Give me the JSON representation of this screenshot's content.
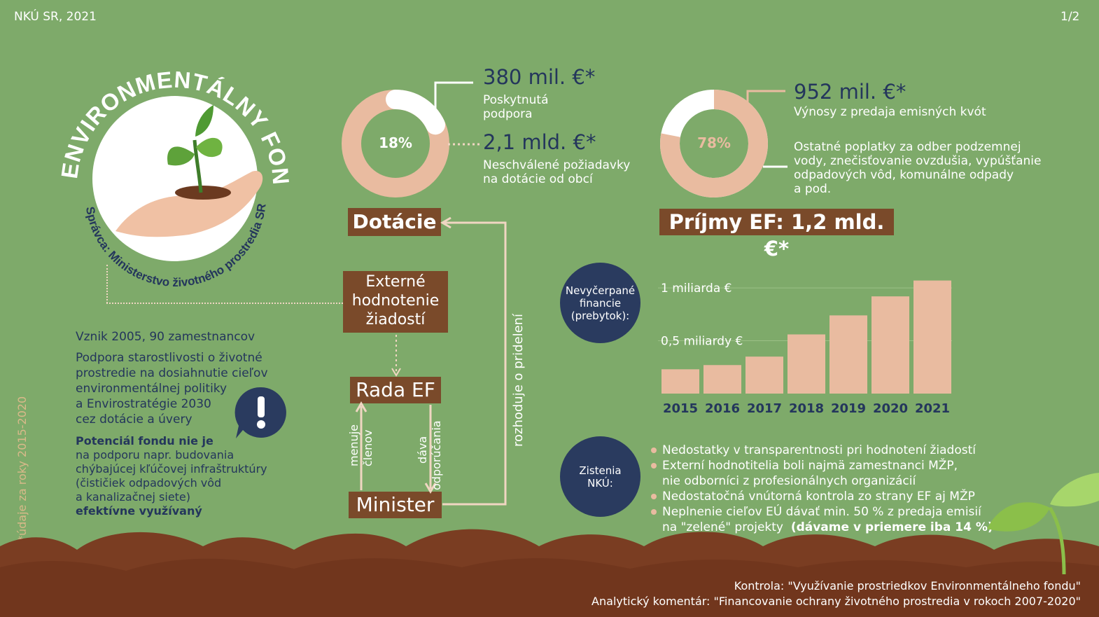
{
  "header": {
    "source": "NKÚ SR, 2021",
    "page": "1/2"
  },
  "logo": {
    "title": "ENVIRONMENTÁLNY FOND",
    "subtitle": "Správca: Ministerstvo životného prostredia SR"
  },
  "left": {
    "founded": "Vznik 2005, 90 zamestnancov",
    "desc1": "Podpora starostlivosti o životné",
    "desc2": "prostredie na dosiahnutie cieľov",
    "desc3": "environmentálnej politiky",
    "desc4": "a Envirostratégie 2030",
    "desc5": "cez dotácie a úvery",
    "pot1": "Potenciál fondu nie je",
    "pot2": "na podporu napr. budovania",
    "pot3": "chýbajúcej kľúčovej infraštruktúry",
    "pot4": "(čističiek odpadových vôd",
    "pot5": "a kanalizačnej siete)",
    "pot6": "efektívne využívaný",
    "footnote": "*údaje za roky 2015-2020"
  },
  "donut_left": {
    "percent": "18%",
    "value_fraction": 0.18,
    "val1": "380 mil. €*",
    "lbl1a": "Poskytnutá",
    "lbl1b": "podpora",
    "val2": "2,1 mld. €*",
    "lbl2a": "Neschválené požiadavky",
    "lbl2b": "na dotácie od obcí"
  },
  "donut_right": {
    "percent": "78%",
    "value_fraction": 0.78,
    "val1": "952 mil. €*",
    "lbl1": "Výnosy z predaja emisných kvót",
    "lbl2a": "Ostatné poplatky za odber podzemnej",
    "lbl2b": "vody, znečisťovanie ovzdušia, vypúšťanie",
    "lbl2c": "odpadových vôd, komunálne odpady",
    "lbl2d": "a pod."
  },
  "flow": {
    "dotacie": "Dotácie",
    "ext1": "Externé",
    "ext2": "hodnotenie",
    "ext3": "žiadostí",
    "rada": "Rada EF",
    "minister": "Minister",
    "menuje1": "menuje",
    "menuje2": "členov",
    "dava1": "dáva",
    "dava2": "odporúčania",
    "rozhoduje": "rozhoduje o pridelení"
  },
  "income": {
    "title": "Príjmy EF: 1,2 mld. €*"
  },
  "surplus": {
    "circle1": "Nevyčerpané",
    "circle2": "financie",
    "circle3": "(prebytok):"
  },
  "chart_data": {
    "type": "bar",
    "categories": [
      "2015",
      "2016",
      "2017",
      "2018",
      "2019",
      "2020",
      "2021"
    ],
    "values": [
      0.23,
      0.27,
      0.35,
      0.56,
      0.74,
      0.92,
      1.07
    ],
    "ylim": [
      0,
      1.12
    ],
    "gridlines": [
      {
        "value": 1.0,
        "label": "1 miliarda €"
      },
      {
        "value": 0.5,
        "label": "0,5 miliardy €"
      }
    ],
    "bar_color": "#e9bba0"
  },
  "findings": {
    "circle1": "Zistenia",
    "circle2": "NKÚ:",
    "f1": "Nedostatky v transparentnosti pri hodnotení žiadostí",
    "f2a": "Externí hodnotitelia boli najmä zamestnanci MŽP,",
    "f2b": "nie odborníci z profesionálnych organizácií",
    "f3": "Nedostatočná vnútorná kontrola zo strany EF aj MŽP",
    "f4a": "Neplnenie cieľov EÚ dávať min. 50 % z predaja emisií",
    "f4b": "na \"zelené\" projekty",
    "f4c": "(dávame v priemere iba 14 %)"
  },
  "footer": {
    "line1": "Kontrola: \"Využívanie prostriedkov Environmentálneho fondu\"",
    "line2": "Analytický komentár: \"Financovanie ochrany životného prostredia v rokoch 2007-2020\""
  },
  "colors": {
    "background": "#7eaa6a",
    "peach": "#e9bba0",
    "brown": "#7a4a2a",
    "navy": "#2a3b5f",
    "soil": "#7a3d22"
  }
}
